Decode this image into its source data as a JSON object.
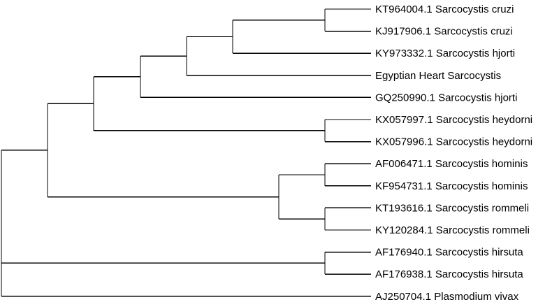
{
  "tree": {
    "name": "root",
    "children": [
      {
        "name": "n1",
        "children": [
          {
            "name": "n2",
            "children": [
              {
                "name": "n3",
                "children": [
                  {
                    "name": "n4",
                    "children": [
                      {
                        "name": "n5",
                        "children": [
                          {
                            "name": "n6",
                            "children": [
                              {
                                "label": "KT964004.1 Sarcocystis cruzi"
                              },
                              {
                                "label": "KJ917906.1 Sarcocystis cruzi"
                              }
                            ]
                          },
                          {
                            "label": "KY973332.1 Sarcocystis hjorti"
                          }
                        ]
                      },
                      {
                        "label": "Egyptian Heart Sarcocystis"
                      }
                    ]
                  },
                  {
                    "label": "GQ250990.1 Sarcocystis hjorti"
                  }
                ]
              },
              {
                "name": "n7",
                "children": [
                  {
                    "label": "KX057997.1 Sarcocystis heydorni"
                  },
                  {
                    "label": "KX057996.1 Sarcocystis heydorni"
                  }
                ]
              }
            ]
          },
          {
            "name": "n8",
            "children": [
              {
                "name": "n9",
                "children": [
                  {
                    "label": "AF006471.1 Sarcocystis hominis"
                  },
                  {
                    "label": "KF954731.1 Sarcocystis hominis"
                  }
                ]
              },
              {
                "name": "n10",
                "children": [
                  {
                    "label": "KT193616.1 Sarcocystis rommeli"
                  },
                  {
                    "label": "KY120284.1 Sarcocystis rommeli"
                  }
                ]
              }
            ]
          }
        ]
      },
      {
        "name": "n11",
        "children": [
          {
            "label": "AF176940.1 Sarcocystis hirsuta"
          },
          {
            "label": "AF176938.1 Sarcocystis hirsuta"
          }
        ]
      },
      {
        "label": "AJ250704.1 Plasmodium vivax"
      }
    ]
  },
  "leaves": [
    "KT964004.1 Sarcocystis cruzi",
    "KJ917906.1 Sarcocystis cruzi",
    "KY973332.1 Sarcocystis hjorti",
    "Egyptian Heart Sarcocystis",
    "GQ250990.1 Sarcocystis hjorti",
    "KX057997.1 Sarcocystis heydorni",
    "KX057996.1 Sarcocystis heydorni",
    "AF006471.1 Sarcocystis hominis",
    "KF954731.1 Sarcocystis hominis",
    "KT193616.1 Sarcocystis rommeli",
    "KY120284.1 Sarcocystis rommeli",
    "AF176940.1 Sarcocystis hirsuta",
    "AF176938.1 Sarcocystis hirsuta",
    "AJ250704.1 Plasmodium vivax"
  ]
}
